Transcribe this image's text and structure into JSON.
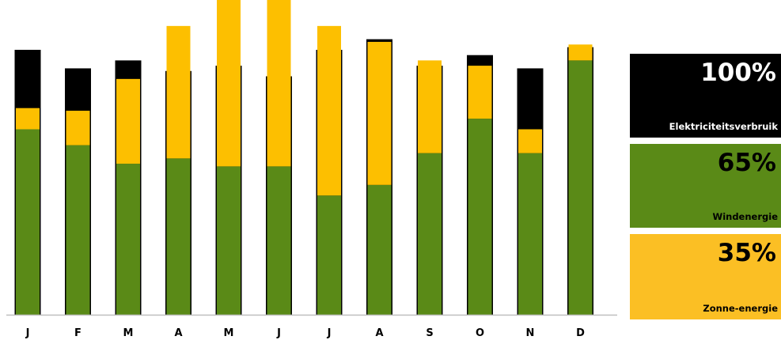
{
  "colors": {
    "electricity": "#000000",
    "wind": "#5a8a17",
    "solar": "#fdbf00",
    "axis": "#bfbfbf",
    "legend_text_light": "#ffffff",
    "legend_text_dark": "#000000"
  },
  "legend": {
    "electricity": {
      "percent": "100%",
      "label": "Elektriciteitsverbruik",
      "color": "#000000"
    },
    "wind": {
      "percent": "65%",
      "label": "Windenergie",
      "color": "#5a8a17"
    },
    "solar": {
      "percent": "35%",
      "label": "Zonne-energie",
      "color": "#fbbf24"
    }
  },
  "chart_data": {
    "type": "bar",
    "categories": [
      "J",
      "F",
      "M",
      "A",
      "M",
      "J",
      "J",
      "A",
      "S",
      "O",
      "N",
      "D"
    ],
    "consumption": [
      100,
      93,
      96,
      92,
      94,
      90,
      100,
      104,
      94,
      98,
      93,
      101
    ],
    "series": [
      {
        "name": "Windenergie",
        "values": [
          70,
          64,
          57,
          59,
          56,
          56,
          45,
          49,
          61,
          74,
          61,
          96
        ]
      },
      {
        "name": "Zonne-energie",
        "values": [
          8,
          13,
          32,
          50,
          63,
          65,
          64,
          54,
          35,
          20,
          9,
          6
        ]
      }
    ],
    "ylim": [
      0,
      120
    ],
    "grid": false,
    "legend_position": "right"
  }
}
